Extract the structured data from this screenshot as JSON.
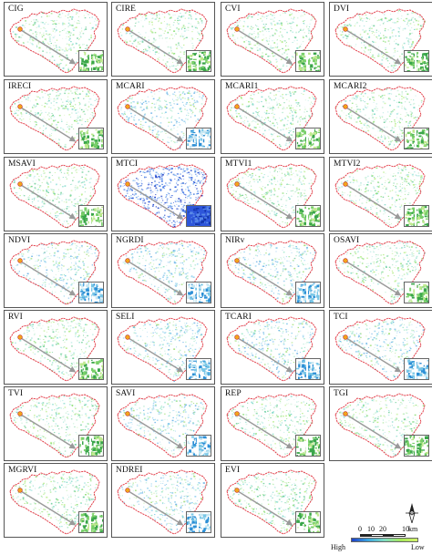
{
  "panels": [
    {
      "label": "CIG",
      "variant": "green"
    },
    {
      "label": "CIRE",
      "variant": "green"
    },
    {
      "label": "CVI",
      "variant": "green"
    },
    {
      "label": "DVI",
      "variant": "green"
    },
    {
      "label": "IRECI",
      "variant": "green"
    },
    {
      "label": "MCARI",
      "variant": "mixed"
    },
    {
      "label": "MCARI1",
      "variant": "green"
    },
    {
      "label": "MCARI2",
      "variant": "green"
    },
    {
      "label": "MSAVI",
      "variant": "green"
    },
    {
      "label": "MTCI",
      "variant": "blue"
    },
    {
      "label": "MTVI1",
      "variant": "green"
    },
    {
      "label": "MTVI2",
      "variant": "green"
    },
    {
      "label": "NDVI",
      "variant": "mixed"
    },
    {
      "label": "NGRDI",
      "variant": "mixed"
    },
    {
      "label": "NIRv",
      "variant": "mixed"
    },
    {
      "label": "OSAVI",
      "variant": "green"
    },
    {
      "label": "RVI",
      "variant": "green"
    },
    {
      "label": "SELI",
      "variant": "mixed"
    },
    {
      "label": "TCARI",
      "variant": "mixed"
    },
    {
      "label": "TCI",
      "variant": "mixed"
    },
    {
      "label": "TVI",
      "variant": "green"
    },
    {
      "label": "SAVI",
      "variant": "mixed"
    },
    {
      "label": "REP",
      "variant": "green"
    },
    {
      "label": "TGI",
      "variant": "green"
    },
    {
      "label": "MGRVI",
      "variant": "green"
    },
    {
      "label": "NDREI",
      "variant": "mixed"
    },
    {
      "label": "EVI",
      "variant": "green"
    }
  ],
  "legend": {
    "scale_ticks": [
      "0",
      "10",
      "20",
      "10"
    ],
    "scale_unit": "km",
    "ramp_high": "High",
    "ramp_low": "Low"
  },
  "colors": {
    "boundary": "#e0303c",
    "arrow": "#9a9a9a",
    "marker_fill": "#f2a51c",
    "marker_stroke": "#c03030",
    "ramp": [
      "#1d3fc8",
      "#3aa6e0",
      "#7fdcc0",
      "#a6e85a",
      "#d4f36a"
    ]
  },
  "icons": {
    "north_arrow": "north-arrow-icon"
  }
}
